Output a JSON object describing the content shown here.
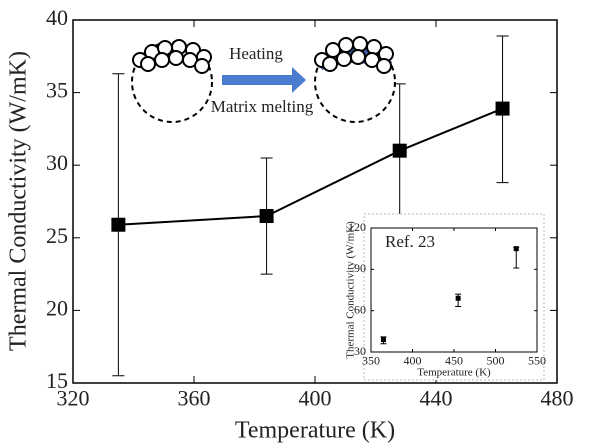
{
  "chart_data": [
    {
      "type": "line",
      "xlabel": "Temperature (K)",
      "ylabel": "Thermal Conductivity (W/mK)",
      "x": [
        335,
        384,
        428,
        462
      ],
      "y": [
        25.9,
        26.5,
        31.0,
        33.9
      ],
      "yerr_minus": [
        10.4,
        4.0,
        4.6,
        5.1
      ],
      "yerr_plus": [
        10.4,
        4.0,
        4.6,
        5.0
      ],
      "color": "#000000",
      "xlim": [
        320,
        480
      ],
      "xticks": [
        320,
        360,
        400,
        440,
        480
      ],
      "ylim": [
        15,
        40
      ],
      "yticks": [
        15,
        20,
        25,
        30,
        35,
        40
      ],
      "annotations": [
        "Heating",
        "Matrix melting"
      ]
    },
    {
      "type": "scatter",
      "xlabel": "Temperature (K)",
      "ylabel": "Thermal Conductivity (W/mK)",
      "x": [
        365,
        455,
        525
      ],
      "y": [
        39,
        69,
        105
      ],
      "yerr_minus": [
        3,
        6,
        14
      ],
      "yerr_plus": [
        2,
        3,
        1
      ],
      "color": "#000000",
      "xlim": [
        350,
        550
      ],
      "xticks": [
        350,
        400,
        450,
        500,
        550
      ],
      "ylim": [
        30,
        120
      ],
      "yticks": [
        30,
        60,
        90,
        120
      ],
      "annotations": [
        "Ref. 23"
      ]
    }
  ]
}
